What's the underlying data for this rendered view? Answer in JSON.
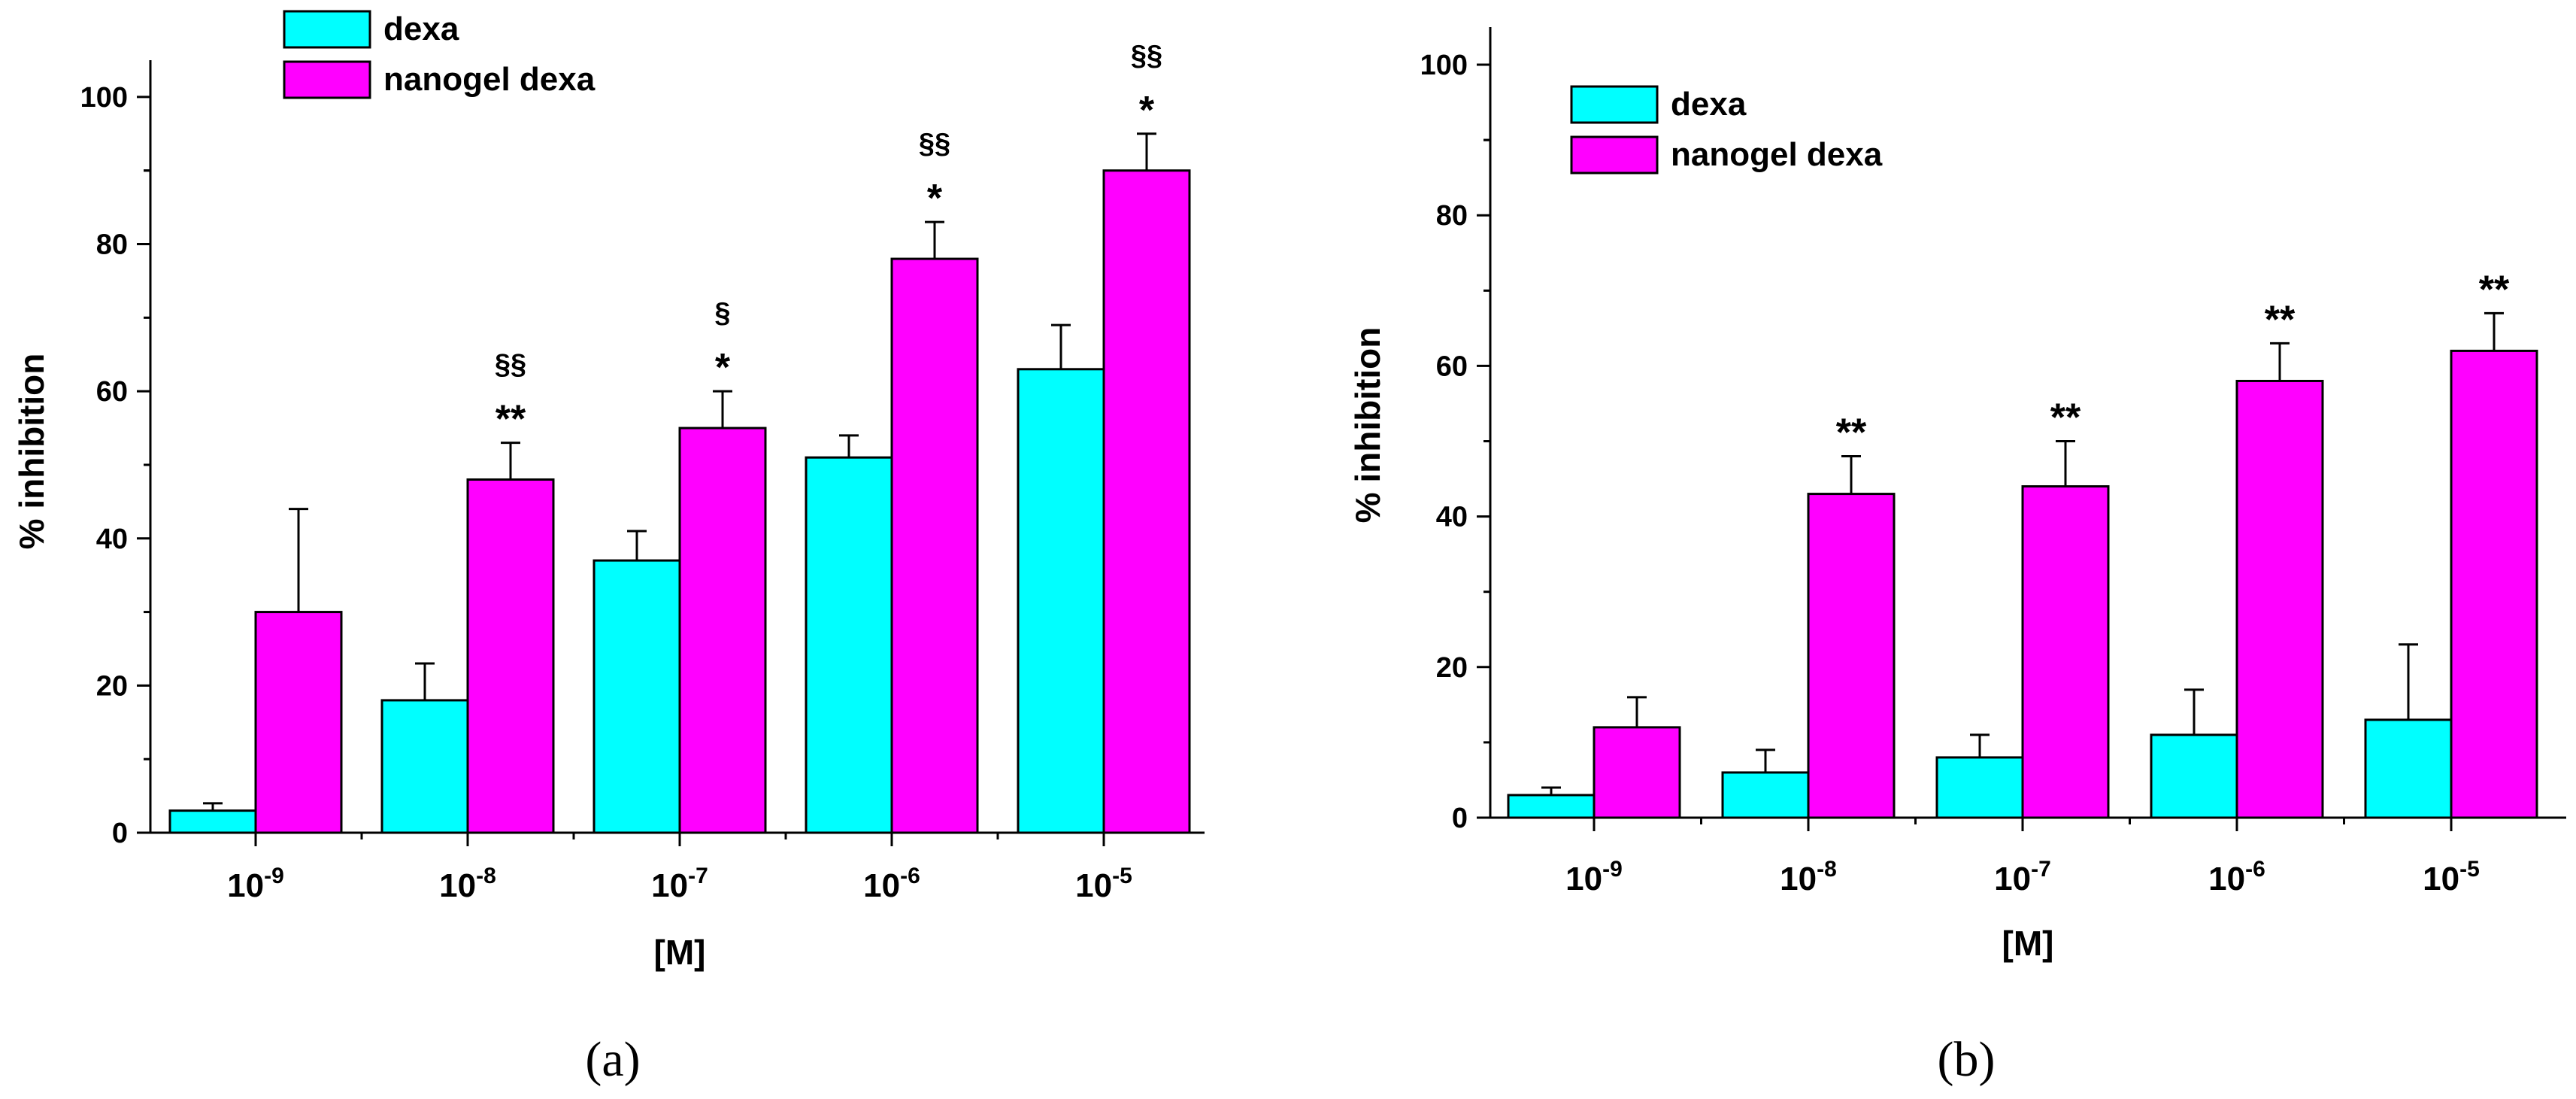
{
  "chart_data": [
    {
      "type": "bar",
      "panel_label": "(a)",
      "categories": [
        "10",
        "10",
        "10",
        "10",
        "10"
      ],
      "category_exponents": [
        "-9",
        "-8",
        "-7",
        "-6",
        "-5"
      ],
      "xlabel": "[M]",
      "ylabel": "% inhibition",
      "ylim": [
        0,
        105
      ],
      "yticks": [
        0,
        20,
        40,
        60,
        80,
        100
      ],
      "legend_position": "top-left",
      "series": [
        {
          "name": "dexa",
          "color": "#00FFFF",
          "values": [
            3,
            18,
            37,
            51,
            63
          ],
          "errors": [
            1,
            5,
            4,
            3,
            6
          ]
        },
        {
          "name": "nanogel dexa",
          "color": "#FF00FF",
          "values": [
            30,
            48,
            55,
            78,
            90
          ],
          "errors": [
            14,
            5,
            5,
            5,
            5
          ]
        }
      ],
      "annotations": [
        {
          "category": 1,
          "series": 1,
          "lines": [
            "§§",
            "**"
          ]
        },
        {
          "category": 2,
          "series": 1,
          "lines": [
            "§",
            "*"
          ]
        },
        {
          "category": 3,
          "series": 1,
          "lines": [
            "§§",
            "*"
          ]
        },
        {
          "category": 4,
          "series": 1,
          "lines": [
            "§§",
            "*"
          ]
        }
      ]
    },
    {
      "type": "bar",
      "panel_label": "(b)",
      "categories": [
        "10",
        "10",
        "10",
        "10",
        "10"
      ],
      "category_exponents": [
        "-9",
        "-8",
        "-7",
        "-6",
        "-5"
      ],
      "xlabel": "[M]",
      "ylabel": "% inhibition",
      "ylim": [
        0,
        105
      ],
      "yticks": [
        0,
        20,
        40,
        60,
        80,
        100
      ],
      "legend_position": "top-left",
      "series": [
        {
          "name": "dexa",
          "color": "#00FFFF",
          "values": [
            3,
            6,
            8,
            11,
            13
          ],
          "errors": [
            1,
            3,
            3,
            6,
            10
          ]
        },
        {
          "name": "nanogel dexa",
          "color": "#FF00FF",
          "values": [
            12,
            43,
            44,
            58,
            62
          ],
          "errors": [
            4,
            5,
            6,
            5,
            5
          ]
        }
      ],
      "annotations": [
        {
          "category": 1,
          "series": 1,
          "lines": [
            "**"
          ]
        },
        {
          "category": 2,
          "series": 1,
          "lines": [
            "**"
          ]
        },
        {
          "category": 3,
          "series": 1,
          "lines": [
            "**"
          ]
        },
        {
          "category": 4,
          "series": 1,
          "lines": [
            "**"
          ]
        }
      ]
    }
  ]
}
